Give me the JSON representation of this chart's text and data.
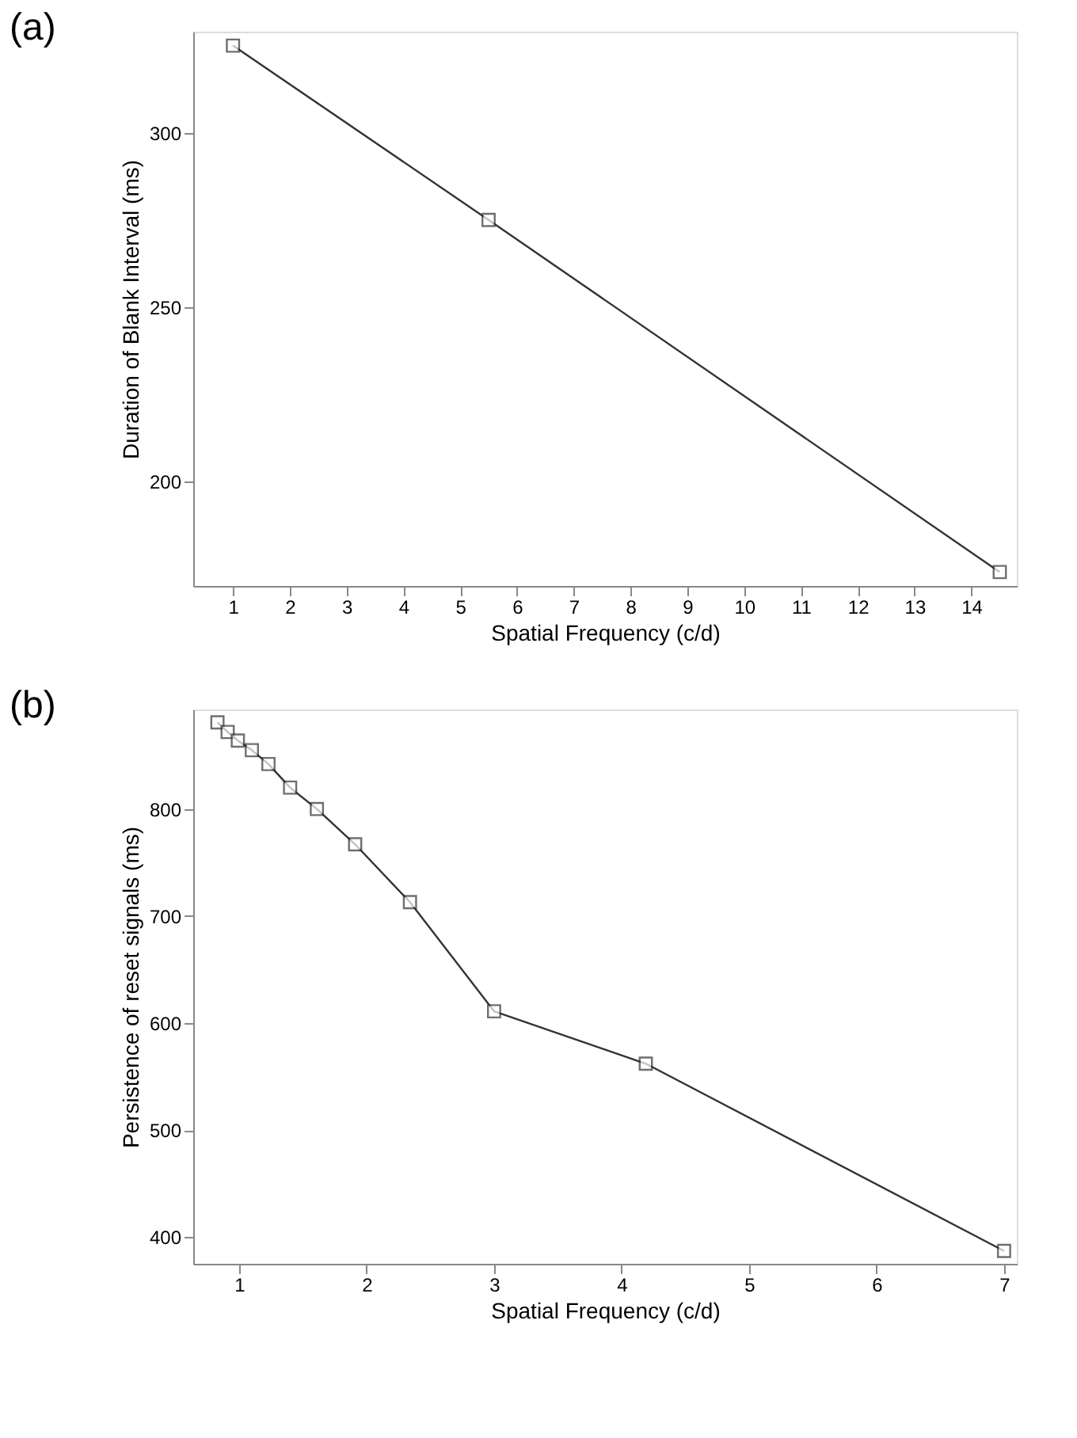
{
  "chart_data": [
    {
      "type": "line",
      "title": "(a)",
      "xlabel": "Spatial Frequency (c/d)",
      "ylabel": "Duration of Blank Interval (ms)",
      "x": [
        1,
        5.5,
        14.5
      ],
      "series": [
        {
          "color": "#333333",
          "values": [
            325,
            275,
            174
          ]
        }
      ],
      "xlim": [
        0.3,
        14.8
      ],
      "xticks": [
        1,
        2,
        3,
        4,
        5,
        6,
        7,
        8,
        9,
        10,
        11,
        12,
        13,
        14
      ],
      "ylim": [
        170,
        329
      ],
      "yticks": [
        200,
        250,
        300
      ],
      "grid": false,
      "marker": "square",
      "line_style": "solid"
    },
    {
      "type": "line",
      "title": "(b)",
      "xlabel": "Spatial Frequency (c/d)",
      "ylabel": "Persistence of reset signals (ms)",
      "x": [
        0.83,
        0.91,
        0.99,
        1.1,
        1.23,
        1.4,
        1.61,
        1.91,
        2.34,
        3.0,
        4.19,
        7.0
      ],
      "series": [
        {
          "color": "#333333",
          "values": [
            881,
            872,
            864,
            855,
            842,
            820,
            800,
            767,
            713,
            611,
            562,
            387
          ]
        }
      ],
      "xlim": [
        0.64,
        7.1
      ],
      "xticks": [
        1,
        2,
        3,
        4,
        5,
        6,
        7
      ],
      "ylim": [
        375,
        893
      ],
      "yticks": [
        400,
        500,
        600,
        700,
        800
      ],
      "grid": false,
      "marker": "square",
      "line_style": "solid"
    }
  ]
}
